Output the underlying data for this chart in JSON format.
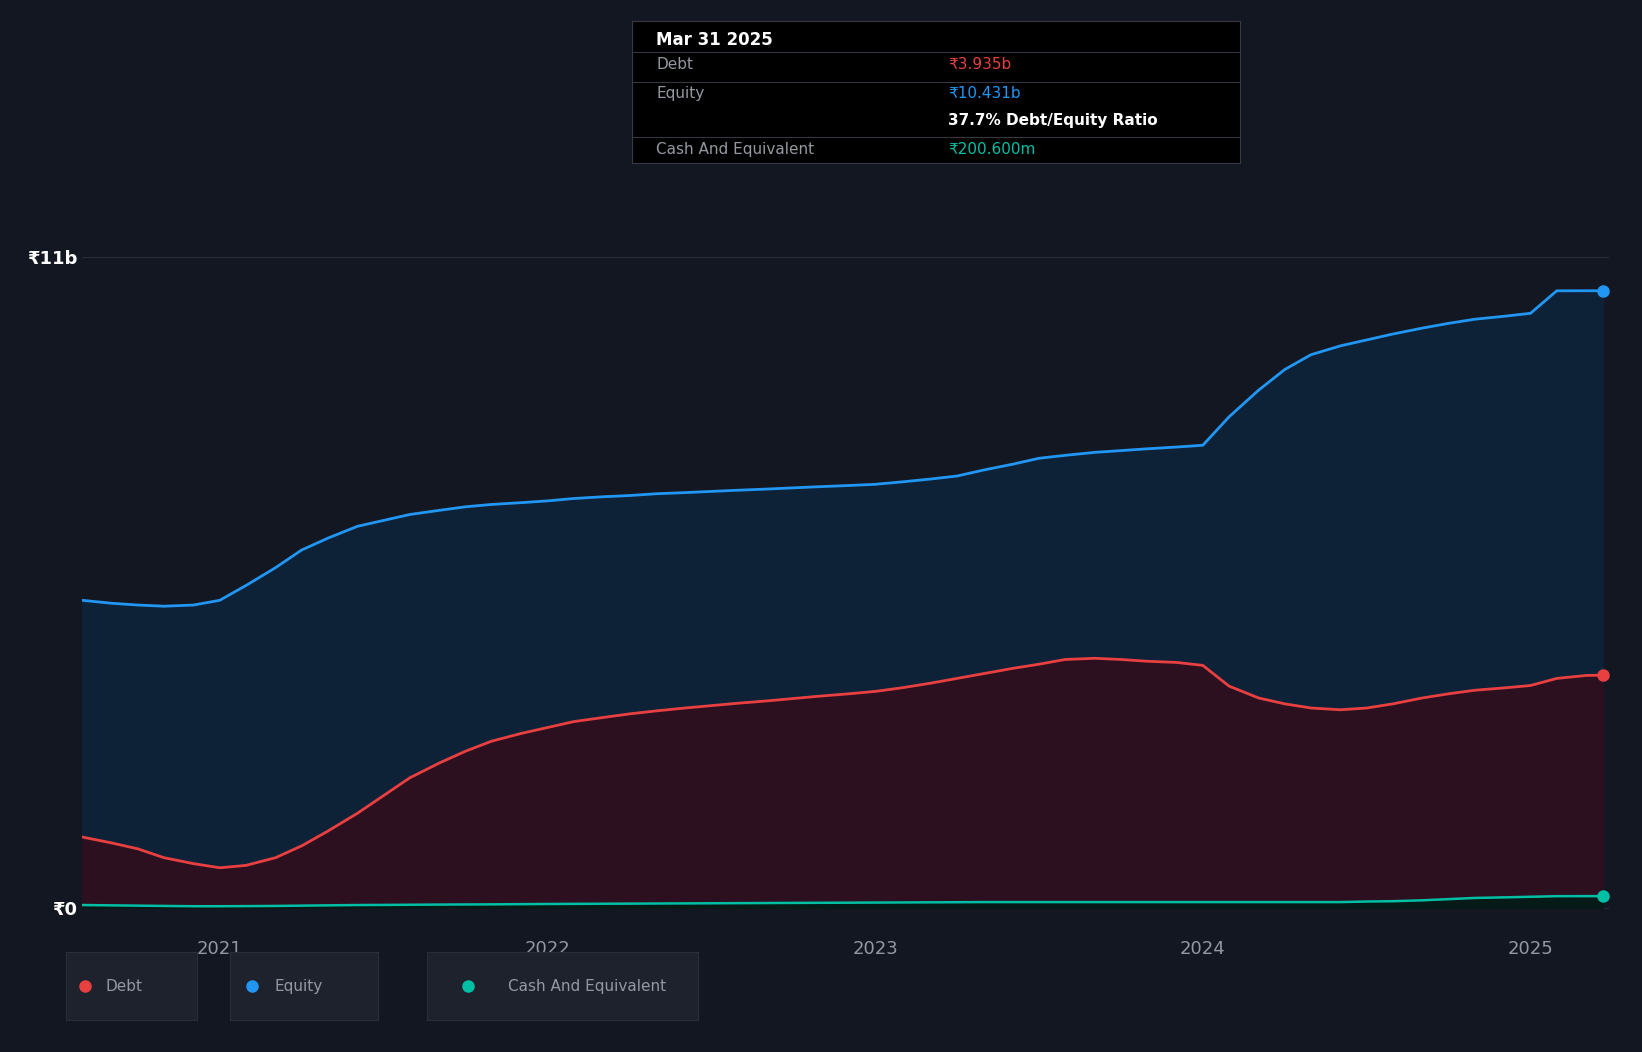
{
  "background_color": "#131722",
  "plot_bg_color": "#131722",
  "equity_color": "#2196f3",
  "equity_fill_color": "#0d2137",
  "debt_color": "#e84040",
  "debt_fill_color": "#2d1020",
  "cash_color": "#00bfa5",
  "cash_fill_color": "#061a17",
  "grid_color": "#2a2e39",
  "text_color": "#9598a1",
  "tooltip_bg": "#000000",
  "tooltip_border": "#363a45",
  "ylabel_11b": "₹11b",
  "ylabel_0": "₹0",
  "x_ticks": [
    2021,
    2022,
    2023,
    2024,
    2025
  ],
  "ylim_max": 12.5,
  "time": [
    2020.58,
    2020.67,
    2020.75,
    2020.83,
    2020.92,
    2021.0,
    2021.08,
    2021.17,
    2021.25,
    2021.33,
    2021.42,
    2021.5,
    2021.58,
    2021.67,
    2021.75,
    2021.83,
    2021.92,
    2022.0,
    2022.08,
    2022.17,
    2022.25,
    2022.33,
    2022.42,
    2022.5,
    2022.58,
    2022.67,
    2022.75,
    2022.83,
    2022.92,
    2023.0,
    2023.08,
    2023.17,
    2023.25,
    2023.33,
    2023.42,
    2023.5,
    2023.58,
    2023.67,
    2023.75,
    2023.83,
    2023.92,
    2024.0,
    2024.08,
    2024.17,
    2024.25,
    2024.33,
    2024.42,
    2024.5,
    2024.58,
    2024.67,
    2024.75,
    2024.83,
    2024.92,
    2025.0,
    2025.08,
    2025.17,
    2025.22
  ],
  "equity": [
    5.2,
    5.15,
    5.12,
    5.1,
    5.12,
    5.2,
    5.45,
    5.75,
    6.05,
    6.25,
    6.45,
    6.55,
    6.65,
    6.72,
    6.78,
    6.82,
    6.85,
    6.88,
    6.92,
    6.95,
    6.97,
    7.0,
    7.02,
    7.04,
    7.06,
    7.08,
    7.1,
    7.12,
    7.14,
    7.16,
    7.2,
    7.25,
    7.3,
    7.4,
    7.5,
    7.6,
    7.65,
    7.7,
    7.73,
    7.76,
    7.79,
    7.82,
    8.3,
    8.75,
    9.1,
    9.35,
    9.5,
    9.6,
    9.7,
    9.8,
    9.88,
    9.95,
    10.0,
    10.05,
    10.43,
    10.431,
    10.431
  ],
  "debt": [
    1.2,
    1.1,
    1.0,
    0.85,
    0.75,
    0.68,
    0.72,
    0.85,
    1.05,
    1.3,
    1.6,
    1.9,
    2.2,
    2.45,
    2.65,
    2.82,
    2.95,
    3.05,
    3.15,
    3.22,
    3.28,
    3.33,
    3.38,
    3.42,
    3.46,
    3.5,
    3.54,
    3.58,
    3.62,
    3.66,
    3.72,
    3.8,
    3.88,
    3.96,
    4.05,
    4.12,
    4.2,
    4.22,
    4.2,
    4.17,
    4.15,
    4.1,
    3.75,
    3.55,
    3.45,
    3.38,
    3.35,
    3.38,
    3.45,
    3.55,
    3.62,
    3.68,
    3.72,
    3.76,
    3.88,
    3.93,
    3.935
  ],
  "cash": [
    0.05,
    0.045,
    0.04,
    0.035,
    0.03,
    0.03,
    0.032,
    0.035,
    0.04,
    0.045,
    0.05,
    0.052,
    0.055,
    0.058,
    0.06,
    0.062,
    0.065,
    0.068,
    0.07,
    0.072,
    0.074,
    0.076,
    0.078,
    0.08,
    0.082,
    0.084,
    0.086,
    0.088,
    0.09,
    0.092,
    0.094,
    0.096,
    0.098,
    0.1,
    0.1,
    0.1,
    0.1,
    0.1,
    0.1,
    0.1,
    0.1,
    0.1,
    0.1,
    0.1,
    0.1,
    0.1,
    0.1,
    0.11,
    0.115,
    0.13,
    0.15,
    0.17,
    0.18,
    0.19,
    0.2,
    0.2006,
    0.2006
  ],
  "tooltip_date": "Mar 31 2025",
  "tooltip_debt_label": "Debt",
  "tooltip_debt_value": "₹3.935b",
  "tooltip_equity_label": "Equity",
  "tooltip_equity_value": "₹10.431b",
  "tooltip_ratio_text": "37.7% Debt/Equity Ratio",
  "tooltip_cash_label": "Cash And Equivalent",
  "tooltip_cash_value": "₹200.600m",
  "legend_debt": "Debt",
  "legend_equity": "Equity",
  "legend_cash": "Cash And Equivalent"
}
